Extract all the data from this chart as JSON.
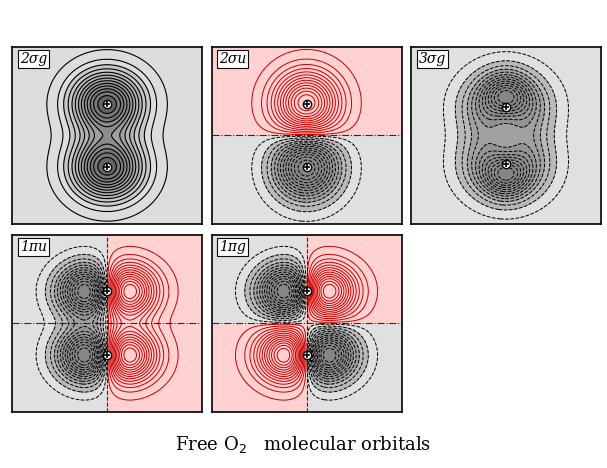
{
  "title": "Free O$_2$   molecular orbitals",
  "title_fontsize": 13,
  "panels": [
    {
      "label": "2σg",
      "type": "sigma_g",
      "row": 0,
      "col": 0
    },
    {
      "label": "2σu",
      "type": "sigma_u",
      "row": 0,
      "col": 1
    },
    {
      "label": "3σg",
      "type": "three_sigma_g",
      "row": 0,
      "col": 2
    },
    {
      "label": "1πu",
      "type": "pi_u",
      "row": 1,
      "col": 0
    },
    {
      "label": "1πg",
      "type": "pi_g",
      "row": 1,
      "col": 1
    }
  ],
  "pos_fill": "#ffcccc",
  "neg_fill": "#cccccc",
  "pos_line": "#cc0000",
  "neg_line": "#000000",
  "n_levels": 14,
  "d": 0.9,
  "grid_n": 300,
  "grid_range": 3.0
}
